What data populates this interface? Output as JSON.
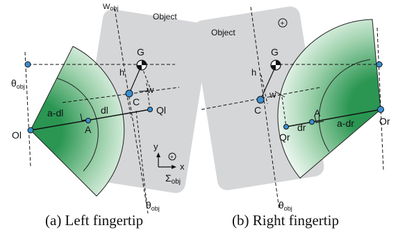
{
  "left_panel": {
    "object_label": "Object",
    "w_obj_label": "W",
    "w_obj_sub": "obj",
    "theta_left": "θ",
    "theta_left_sub": "obj",
    "G": "G",
    "h": "h",
    "C": "C",
    "w": "w",
    "Ql": "Ql",
    "Ol": "Ol",
    "A": "A",
    "a_dl": "a-dl",
    "dl": "dl",
    "y": "y",
    "x": "x",
    "sigma": "Σ",
    "sigma_sub": "obj",
    "theta_bottom": "θ",
    "theta_bottom_sub": "obj",
    "caption": "(a) Left fingertip"
  },
  "right_panel": {
    "object_label": "Object",
    "G": "G",
    "h": "h",
    "C": "C",
    "w": "w",
    "A": "A",
    "Qr": "Qr",
    "dr": "dr",
    "a_dr": "a-dr",
    "Or": "Or",
    "theta_bottom": "θ",
    "theta_bottom_sub": "obj",
    "caption": "(b) Right fingertip"
  },
  "colors": {
    "object_fill": "#d5d6d8",
    "finger_dark": "#1d8a45",
    "finger_light": "#e6f4ea",
    "marker": "#3b8fd0",
    "line": "#111111"
  }
}
